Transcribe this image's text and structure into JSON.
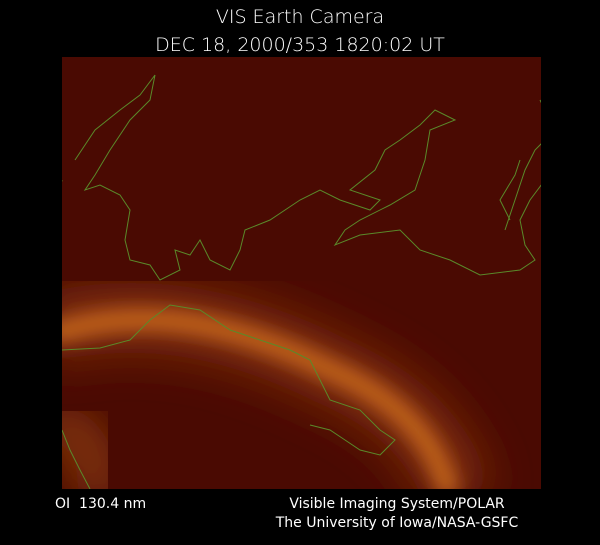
{
  "header": {
    "title": "VIS Earth Camera",
    "subtitle": "DEC 18, 2000/353 1820:02 UT"
  },
  "footer": {
    "filter": "OI  130.4 nm",
    "instrument": "Visible Imaging System/POLAR",
    "institution": "The University of Iowa/NASA-GSFC"
  }
}
